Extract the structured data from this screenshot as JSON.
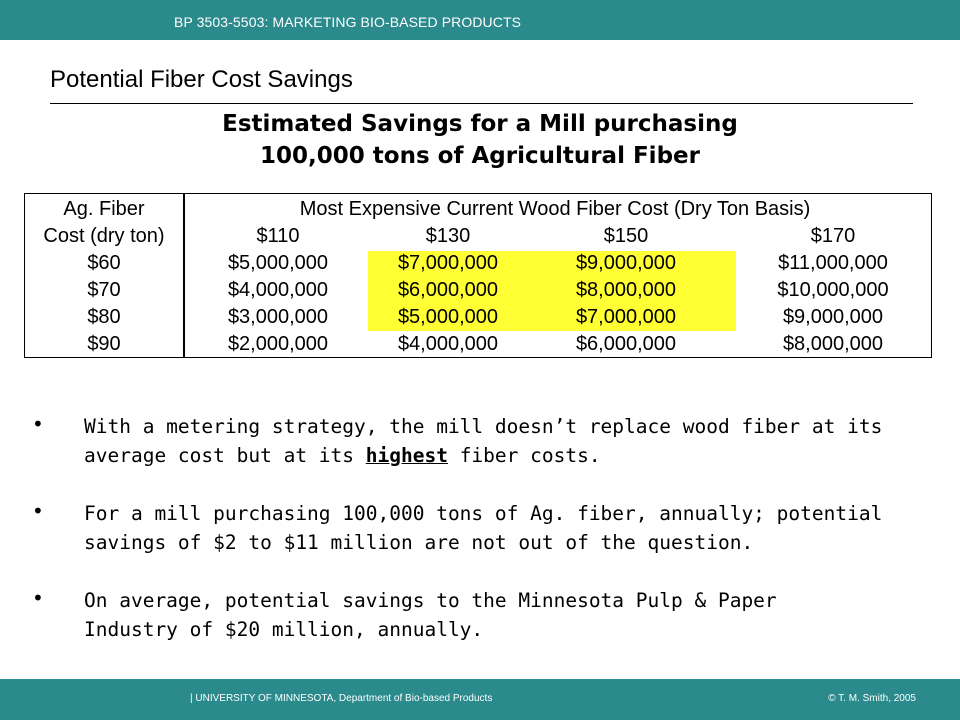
{
  "header": {
    "course": "BP 3503-5503: MARKETING BIO-BASED PRODUCTS"
  },
  "slide": {
    "title": "Potential Fiber Cost Savings",
    "subtitle_line1": "Estimated Savings for a Mill purchasing",
    "subtitle_line2": "100,000 tons of Agricultural Fiber"
  },
  "table": {
    "row_header_1": "Ag. Fiber",
    "row_header_2": "Cost (dry ton)",
    "group_header": "Most Expensive Current Wood Fiber Cost (Dry Ton Basis)",
    "columns": [
      "$110",
      "$130",
      "$150",
      "$170"
    ],
    "rows": [
      {
        "label": "$60",
        "values": [
          "$5,000,000",
          "$7,000,000",
          "$9,000,000",
          "$11,000,000"
        ]
      },
      {
        "label": "$70",
        "values": [
          "$4,000,000",
          "$6,000,000",
          "$8,000,000",
          "$10,000,000"
        ]
      },
      {
        "label": "$80",
        "values": [
          "$3,000,000",
          "$5,000,000",
          "$7,000,000",
          "$9,000,000"
        ]
      },
      {
        "label": "$90",
        "values": [
          "$2,000,000",
          "$4,000,000",
          "$6,000,000",
          "$8,000,000"
        ]
      }
    ],
    "highlight_color": "#ffff33"
  },
  "bullets": {
    "b1_line1": "With a metering strategy, the mill doesn’t replace wood fiber at its",
    "b1_line2_pre": "average cost but at its ",
    "b1_line2_em": "highest",
    "b1_line2_post": " fiber costs.",
    "b2_line1": "For a mill purchasing 100,000 tons of Ag. fiber, annually; potential",
    "b2_line2": "savings of $2 to $11 million are not out of the question.",
    "b3_line1": "On average, potential savings to the Minnesota Pulp & Paper",
    "b3_line2": "Industry of $20 million, annually."
  },
  "footer": {
    "left": "| UNIVERSITY OF MINNESOTA, Department of Bio-based Products",
    "right": "© T. M. Smith, 2005"
  },
  "colors": {
    "brand_teal": "#2a8a8c"
  }
}
